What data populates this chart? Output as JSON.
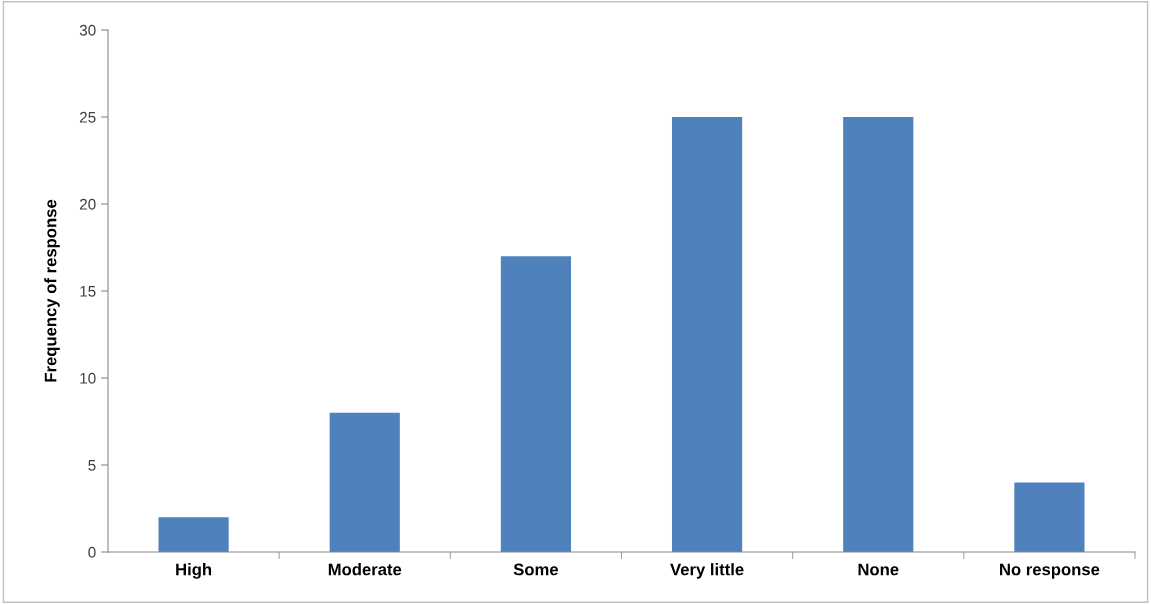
{
  "chart_data": {
    "type": "bar",
    "ylabel": "Frequency of response",
    "categories": [
      "High",
      "Moderate",
      "Some",
      "Very little",
      "None",
      "No response"
    ],
    "values": [
      2,
      8,
      17,
      25,
      25,
      4
    ],
    "color": "#4f81bd",
    "ylim": [
      0,
      30
    ],
    "yticks": [
      0,
      5,
      10,
      15,
      20,
      25,
      30
    ],
    "grid": false,
    "legend": false
  }
}
